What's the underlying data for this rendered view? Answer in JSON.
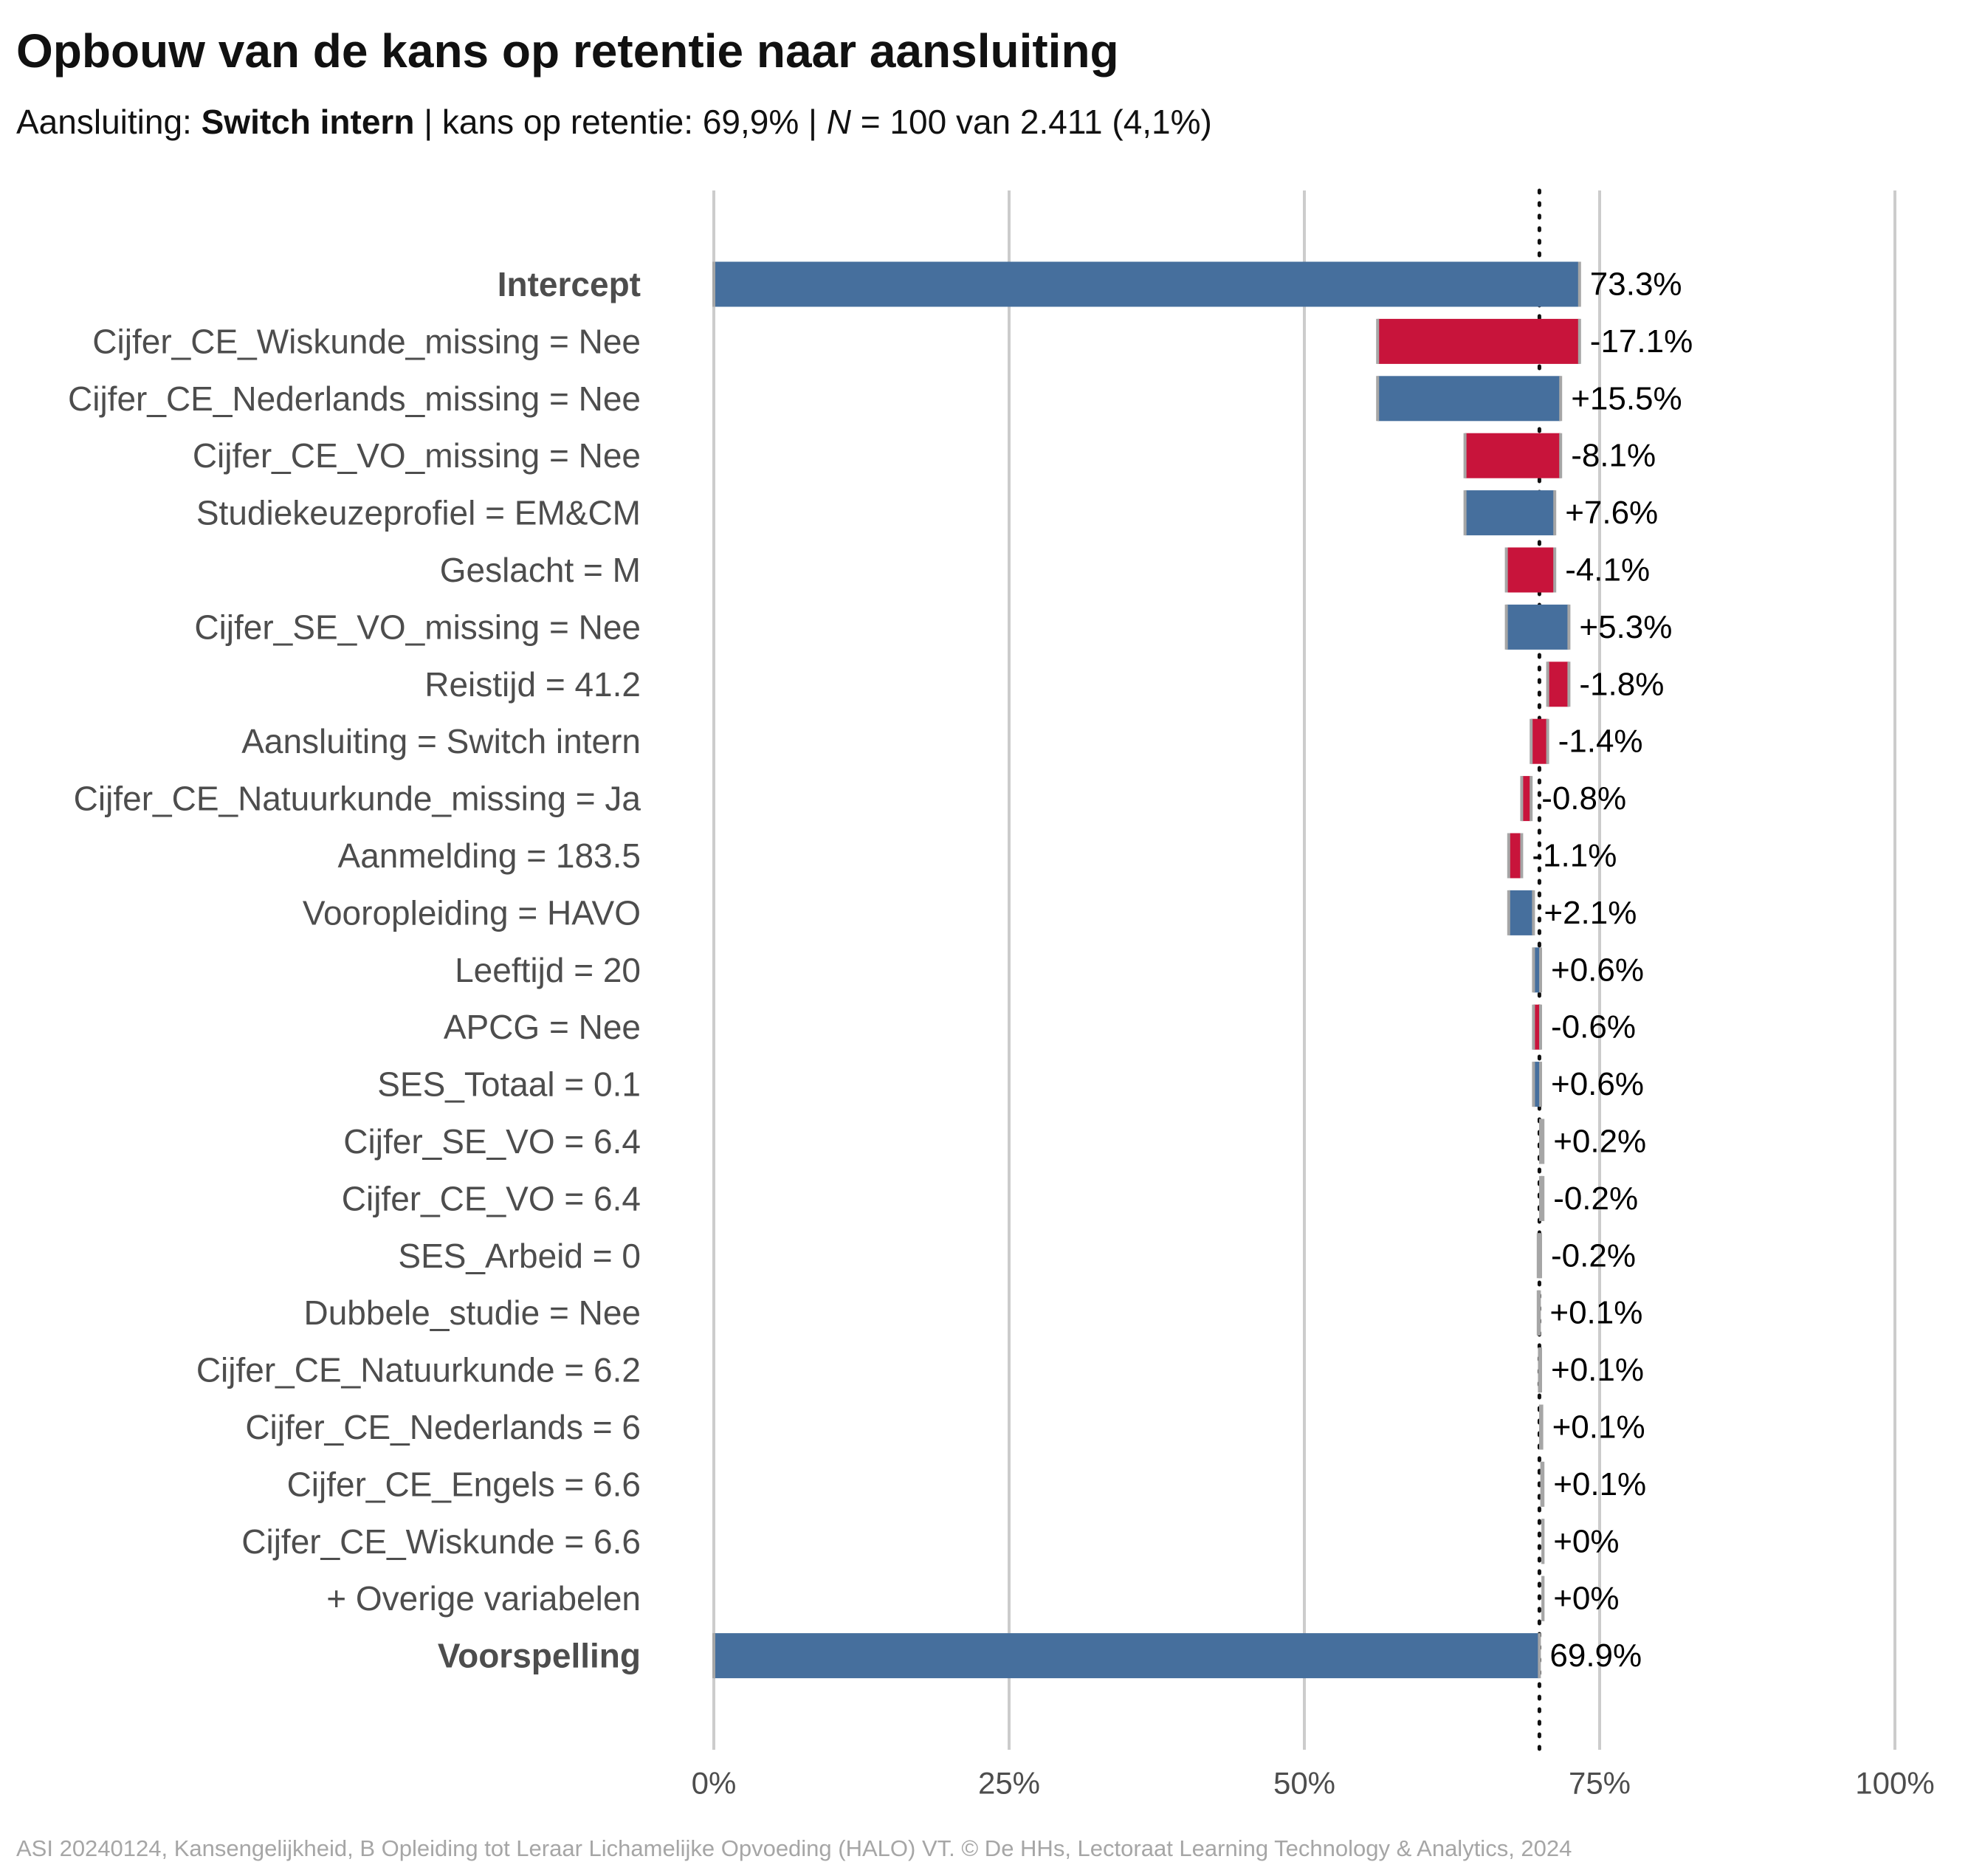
{
  "title": "Opbouw van de kans op retentie naar aansluiting",
  "subtitle": {
    "prefix": "Aansluiting: ",
    "group": "Switch intern",
    "mid": " | kans op retentie: 69,9% | ",
    "n_symbol": "N",
    "suffix": " = 100 van 2.411 (4,1%)"
  },
  "caption": "ASI 20240124, Kansengelijkheid, B Opleiding tot Leraar Lichamelijke Opvoeding (HALO) VT. © De HHs, Lectoraat Learning Technology & Analytics, 2024",
  "colors": {
    "positive": "#466f9d",
    "negative": "#c8143b",
    "neutral": "#a6a6a6",
    "grid": "#cccccc"
  },
  "chart_data": {
    "type": "waterfall",
    "orientation": "horizontal",
    "xlim": [
      0,
      100
    ],
    "x_ticks": [
      0,
      25,
      50,
      75,
      100
    ],
    "x_tick_labels": [
      "0%",
      "25%",
      "50%",
      "75%",
      "100%"
    ],
    "reference_line": 69.9,
    "grid": "vertical",
    "rows": [
      {
        "label": "Intercept",
        "value": 73.3,
        "value_label": "73.3%",
        "kind": "total"
      },
      {
        "label": "Cijfer_CE_Wiskunde_missing = Nee",
        "value": -17.1,
        "value_label": "-17.1%",
        "kind": "step"
      },
      {
        "label": "Cijfer_CE_Nederlands_missing = Nee",
        "value": 15.5,
        "value_label": "+15.5%",
        "kind": "step"
      },
      {
        "label": "Cijfer_CE_VO_missing = Nee",
        "value": -8.1,
        "value_label": "-8.1%",
        "kind": "step"
      },
      {
        "label": "Studiekeuzeprofiel = EM&CM",
        "value": 7.6,
        "value_label": "+7.6%",
        "kind": "step"
      },
      {
        "label": "Geslacht = M",
        "value": -4.1,
        "value_label": "-4.1%",
        "kind": "step"
      },
      {
        "label": "Cijfer_SE_VO_missing = Nee",
        "value": 5.3,
        "value_label": "+5.3%",
        "kind": "step"
      },
      {
        "label": "Reistijd = 41.2",
        "value": -1.8,
        "value_label": "-1.8%",
        "kind": "step"
      },
      {
        "label": "Aansluiting = Switch intern",
        "value": -1.4,
        "value_label": "-1.4%",
        "kind": "step"
      },
      {
        "label": "Cijfer_CE_Natuurkunde_missing = Ja",
        "value": -0.8,
        "value_label": "-0.8%",
        "kind": "step"
      },
      {
        "label": "Aanmelding = 183.5",
        "value": -1.1,
        "value_label": "-1.1%",
        "kind": "step"
      },
      {
        "label": "Vooropleiding = HAVO",
        "value": 2.1,
        "value_label": "+2.1%",
        "kind": "step"
      },
      {
        "label": "Leeftijd = 20",
        "value": 0.6,
        "value_label": "+0.6%",
        "kind": "step"
      },
      {
        "label": "APCG = Nee",
        "value": -0.6,
        "value_label": "-0.6%",
        "kind": "step"
      },
      {
        "label": "SES_Totaal = 0.1",
        "value": 0.6,
        "value_label": "+0.6%",
        "kind": "step"
      },
      {
        "label": "Cijfer_SE_VO = 6.4",
        "value": 0.2,
        "value_label": "+0.2%",
        "kind": "step"
      },
      {
        "label": "Cijfer_CE_VO = 6.4",
        "value": -0.2,
        "value_label": "-0.2%",
        "kind": "step"
      },
      {
        "label": "SES_Arbeid = 0",
        "value": -0.2,
        "value_label": "-0.2%",
        "kind": "step"
      },
      {
        "label": "Dubbele_studie = Nee",
        "value": 0.1,
        "value_label": "+0.1%",
        "kind": "step"
      },
      {
        "label": "Cijfer_CE_Natuurkunde = 6.2",
        "value": 0.1,
        "value_label": "+0.1%",
        "kind": "step"
      },
      {
        "label": "Cijfer_CE_Nederlands = 6",
        "value": 0.1,
        "value_label": "+0.1%",
        "kind": "step"
      },
      {
        "label": "Cijfer_CE_Engels = 6.6",
        "value": 0.1,
        "value_label": "+0.1%",
        "kind": "step"
      },
      {
        "label": "Cijfer_CE_Wiskunde = 6.6",
        "value": 0.0,
        "value_label": "+0%",
        "kind": "step"
      },
      {
        "label": "+ Overige variabelen",
        "value": 0.0,
        "value_label": "+0%",
        "kind": "step"
      },
      {
        "label": "Voorspelling",
        "value": 69.9,
        "value_label": "69.9%",
        "kind": "total"
      }
    ]
  }
}
